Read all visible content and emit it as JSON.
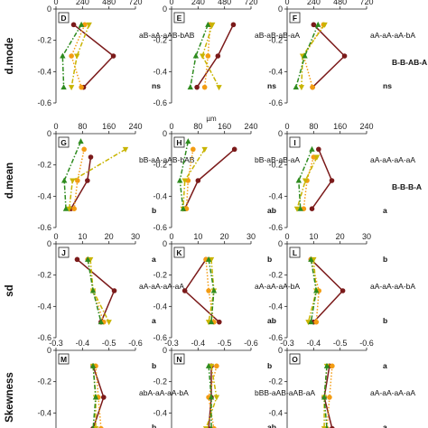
{
  "chart_data": {
    "type": "line",
    "series_styles": [
      {
        "key": "dark_red",
        "color": "#7b1a1a",
        "marker": "circle",
        "dash": "solid"
      },
      {
        "key": "orange",
        "color": "#f39c12",
        "marker": "circle",
        "dash": "dot"
      },
      {
        "key": "olive",
        "color": "#c8b400",
        "marker": "triangle-down",
        "dash": "dashdot"
      },
      {
        "key": "green",
        "color": "#2e8b1e",
        "marker": "triangle-up",
        "dash": "dashdot"
      }
    ],
    "rows": [
      {
        "ylabel": "d.mode",
        "unit": "µm",
        "xticks": [
          "0",
          "240",
          "480",
          "720"
        ],
        "xlim": [
          0,
          720
        ],
        "right_label": "B-B-AB-A",
        "panels": [
          {
            "letter": "D",
            "annotation": "aB-aA-aAB-bAB",
            "bottom_label": "ns",
            "top_unit": false,
            "series": {
              "dark_red": [
                [
                  160,
                  -0.1
                ],
                [
                  520,
                  -0.3
                ],
                [
                  250,
                  -0.5
                ]
              ],
              "orange": [
                [
                  260,
                  -0.1
                ],
                [
                  140,
                  -0.3
                ],
                [
                  230,
                  -0.5
                ]
              ],
              "olive": [
                [
                  300,
                  -0.1
                ],
                [
                  190,
                  -0.3
                ],
                [
                  140,
                  -0.5
                ]
              ],
              "green": [
                [
                  230,
                  -0.1
                ],
                [
                  60,
                  -0.3
                ],
                [
                  70,
                  -0.5
                ]
              ]
            }
          },
          {
            "letter": "E",
            "annotation": "aB-aB-aB-aA",
            "bottom_label": "ns",
            "top_unit": true,
            "series": {
              "dark_red": [
                [
                  560,
                  -0.1
                ],
                [
                  420,
                  -0.3
                ],
                [
                  230,
                  -0.5
                ]
              ],
              "orange": [
                [
                  350,
                  -0.1
                ],
                [
                  330,
                  -0.3
                ],
                [
                  300,
                  -0.5
                ]
              ],
              "olive": [
                [
                  370,
                  -0.1
                ],
                [
                  280,
                  -0.3
                ],
                [
                  430,
                  -0.5
                ]
              ],
              "green": [
                [
                  330,
                  -0.1
                ],
                [
                  220,
                  -0.3
                ],
                [
                  170,
                  -0.5
                ]
              ]
            }
          },
          {
            "letter": "F",
            "annotation": "aA-aA-aA-bA",
            "bottom_label": "ns",
            "top_unit": false,
            "series": {
              "dark_red": [
                [
                  240,
                  -0.1
                ],
                [
                  520,
                  -0.3
                ],
                [
                  230,
                  -0.5
                ]
              ],
              "orange": [
                [
                  330,
                  -0.1
                ],
                [
                  150,
                  -0.3
                ],
                [
                  230,
                  -0.5
                ]
              ],
              "olive": [
                [
                  340,
                  -0.1
                ],
                [
                  140,
                  -0.3
                ],
                [
                  130,
                  -0.5
                ]
              ],
              "green": [
                [
                  280,
                  -0.1
                ],
                [
                  160,
                  -0.3
                ],
                [
                  80,
                  -0.5
                ]
              ]
            }
          }
        ]
      },
      {
        "ylabel": "d.mean",
        "unit": "µm",
        "xticks": [
          "0",
          "80",
          "160",
          "240"
        ],
        "xlim": [
          0,
          240
        ],
        "right_label": "B-B-B-A",
        "panels": [
          {
            "letter": "G",
            "annotation": "bB-aA-aAB-bAB",
            "bottom_label": "b",
            "top_unit": false,
            "series": {
              "dark_red": [
                [
                  105,
                  -0.15
                ],
                [
                  95,
                  -0.3
                ],
                [
                  45,
                  -0.48
                ]
              ],
              "orange": [
                [
                  85,
                  -0.1
                ],
                [
                  65,
                  -0.3
                ],
                [
                  55,
                  -0.48
                ]
              ],
              "olive": [
                [
                  210,
                  -0.1
                ],
                [
                  50,
                  -0.3
                ],
                [
                  40,
                  -0.48
                ]
              ],
              "green": [
                [
                  75,
                  -0.05
                ],
                [
                  25,
                  -0.3
                ],
                [
                  30,
                  -0.48
                ]
              ]
            }
          },
          {
            "letter": "H",
            "annotation": "bB-aB-aB-aA",
            "bottom_label": "ab",
            "top_unit": true,
            "series": {
              "dark_red": [
                [
                  190,
                  -0.1
                ],
                [
                  80,
                  -0.3
                ],
                [
                  40,
                  -0.48
                ]
              ],
              "orange": [
                [
                  65,
                  -0.1
                ],
                [
                  50,
                  -0.3
                ],
                [
                  45,
                  -0.48
                ]
              ],
              "olive": [
                [
                  100,
                  -0.1
                ],
                [
                  40,
                  -0.3
                ],
                [
                  35,
                  -0.48
                ]
              ],
              "green": [
                [
                  50,
                  -0.05
                ],
                [
                  25,
                  -0.3
                ],
                [
                  35,
                  -0.48
                ]
              ]
            }
          },
          {
            "letter": "I",
            "annotation": "aA-aA-aA-aA",
            "bottom_label": "a",
            "top_unit": false,
            "series": {
              "dark_red": [
                [
                  95,
                  -0.1
                ],
                [
                  135,
                  -0.3
                ],
                [
                  75,
                  -0.48
                ]
              ],
              "orange": [
                [
                  80,
                  -0.15
                ],
                [
                  60,
                  -0.3
                ],
                [
                  50,
                  -0.48
                ]
              ],
              "olive": [
                [
                  90,
                  -0.15
                ],
                [
                  55,
                  -0.3
                ],
                [
                  30,
                  -0.48
                ]
              ],
              "green": [
                [
                  75,
                  -0.1
                ],
                [
                  35,
                  -0.3
                ],
                [
                  40,
                  -0.48
                ]
              ]
            }
          }
        ]
      },
      {
        "ylabel": "sd",
        "unit": "",
        "xticks": [
          "0",
          "10",
          "20",
          "30"
        ],
        "xlim": [
          0,
          30
        ],
        "right_label": "",
        "panels": [
          {
            "letter": "J",
            "annotation": "aA-aA-aA-aA",
            "top_label": "a",
            "bottom_label": "a",
            "top_unit": false,
            "series": {
              "dark_red": [
                [
                  8,
                  -0.1
                ],
                [
                  22,
                  -0.3
                ],
                [
                  17,
                  -0.5
                ]
              ],
              "orange": [
                [
                  12,
                  -0.1
                ],
                [
                  14,
                  -0.3
                ],
                [
                  18,
                  -0.5
                ]
              ],
              "olive": [
                [
                  13,
                  -0.1
                ],
                [
                  14,
                  -0.3
                ],
                [
                  20,
                  -0.5
                ]
              ],
              "green": [
                [
                  12,
                  -0.1
                ],
                [
                  14,
                  -0.3
                ],
                [
                  17,
                  -0.5
                ]
              ]
            }
          },
          {
            "letter": "K",
            "annotation": "aA-aA-aA-bA",
            "top_label": "b",
            "bottom_label": "ab",
            "top_unit": false,
            "series": {
              "dark_red": [
                [
                  13,
                  -0.1
                ],
                [
                  5,
                  -0.3
                ],
                [
                  18,
                  -0.5
                ]
              ],
              "orange": [
                [
                  13,
                  -0.1
                ],
                [
                  14,
                  -0.3
                ],
                [
                  16,
                  -0.5
                ]
              ],
              "olive": [
                [
                  15,
                  -0.1
                ],
                [
                  16,
                  -0.3
                ],
                [
                  14,
                  -0.5
                ]
              ],
              "green": [
                [
                  14,
                  -0.1
                ],
                [
                  16,
                  -0.3
                ],
                [
                  15,
                  -0.5
                ]
              ]
            }
          },
          {
            "letter": "L",
            "annotation": "aA-aA-aA-bA",
            "top_label": "b",
            "bottom_label": "b",
            "top_unit": false,
            "series": {
              "dark_red": [
                [
                  9,
                  -0.1
                ],
                [
                  21,
                  -0.3
                ],
                [
                  10,
                  -0.5
                ]
              ],
              "orange": [
                [
                  9,
                  -0.1
                ],
                [
                  12,
                  -0.3
                ],
                [
                  11,
                  -0.5
                ]
              ],
              "olive": [
                [
                  10,
                  -0.1
                ],
                [
                  11,
                  -0.3
                ],
                [
                  8,
                  -0.5
                ]
              ],
              "green": [
                [
                  9,
                  -0.1
                ],
                [
                  11,
                  -0.3
                ],
                [
                  9,
                  -0.5
                ]
              ]
            }
          }
        ]
      },
      {
        "ylabel": "Skewness",
        "unit": "",
        "xticks": [
          "-0.3",
          "-0.4",
          "-0.5",
          "-0.6"
        ],
        "xlim": [
          -0.3,
          -0.6
        ],
        "right_label": "",
        "panels": [
          {
            "letter": "M",
            "annotation": "abA-aA-aA-bA",
            "top_label": "b",
            "bottom_label": "b",
            "top_unit": false,
            "series": {
              "dark_red": [
                [
                  -0.44,
                  -0.1
                ],
                [
                  -0.48,
                  -0.3
                ],
                [
                  -0.44,
                  -0.5
                ]
              ],
              "orange": [
                [
                  -0.45,
                  -0.1
                ],
                [
                  -0.46,
                  -0.3
                ],
                [
                  -0.47,
                  -0.5
                ]
              ],
              "olive": [
                [
                  -0.44,
                  -0.1
                ],
                [
                  -0.45,
                  -0.3
                ],
                [
                  -0.45,
                  -0.5
                ]
              ],
              "green": [
                [
                  -0.44,
                  -0.1
                ],
                [
                  -0.45,
                  -0.3
                ],
                [
                  -0.44,
                  -0.5
                ]
              ]
            }
          },
          {
            "letter": "N",
            "annotation": "bBB-aAB-aAB-aA",
            "top_label": "b",
            "bottom_label": "ab",
            "top_unit": false,
            "series": {
              "dark_red": [
                [
                  -0.45,
                  -0.1
                ],
                [
                  -0.45,
                  -0.3
                ],
                [
                  -0.44,
                  -0.5
                ]
              ],
              "orange": [
                [
                  -0.47,
                  -0.1
                ],
                [
                  -0.44,
                  -0.3
                ],
                [
                  -0.46,
                  -0.5
                ]
              ],
              "olive": [
                [
                  -0.45,
                  -0.1
                ],
                [
                  -0.47,
                  -0.3
                ],
                [
                  -0.43,
                  -0.5
                ]
              ],
              "green": [
                [
                  -0.44,
                  -0.1
                ],
                [
                  -0.45,
                  -0.3
                ],
                [
                  -0.45,
                  -0.5
                ]
              ]
            }
          },
          {
            "letter": "O",
            "annotation": "aA-aA-aA-aA",
            "top_label": "a",
            "bottom_label": "a",
            "top_unit": false,
            "series": {
              "dark_red": [
                [
                  -0.46,
                  -0.1
                ],
                [
                  -0.44,
                  -0.3
                ],
                [
                  -0.47,
                  -0.5
                ]
              ],
              "orange": [
                [
                  -0.47,
                  -0.1
                ],
                [
                  -0.46,
                  -0.3
                ],
                [
                  -0.45,
                  -0.5
                ]
              ],
              "olive": [
                [
                  -0.45,
                  -0.1
                ],
                [
                  -0.44,
                  -0.3
                ],
                [
                  -0.44,
                  -0.5
                ]
              ],
              "green": [
                [
                  -0.45,
                  -0.1
                ],
                [
                  -0.44,
                  -0.3
                ],
                [
                  -0.45,
                  -0.5
                ]
              ]
            }
          }
        ]
      }
    ],
    "ylim": [
      0,
      -0.6
    ],
    "yticks": [
      "0",
      "-0.2",
      "-0.4",
      "-0.6"
    ]
  }
}
